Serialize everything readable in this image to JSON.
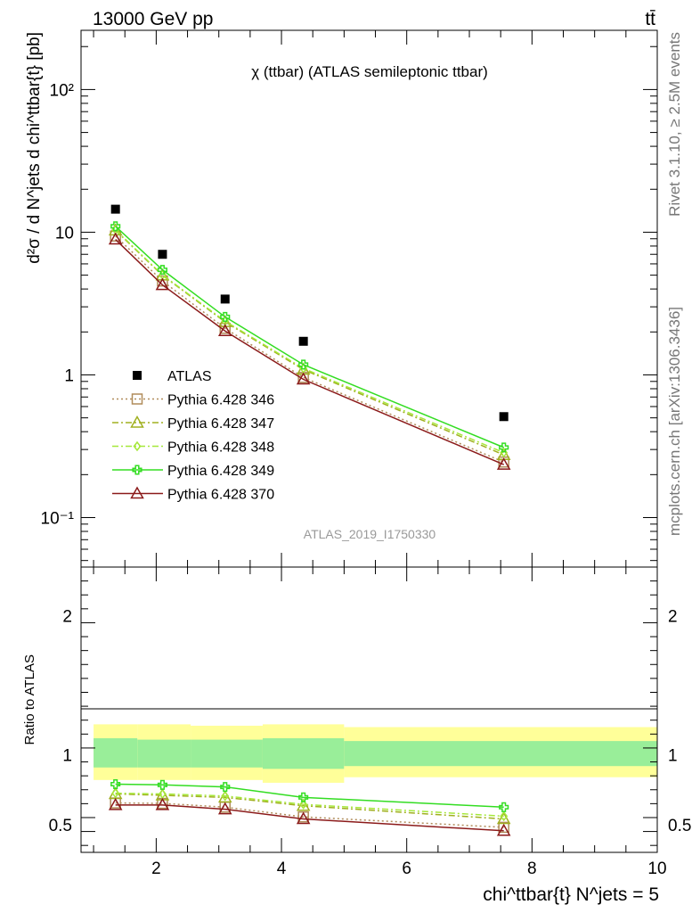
{
  "header": {
    "energy_label": "13000 GeV pp",
    "process_label": "tt̄"
  },
  "side_labels": {
    "rivet": "Rivet 3.1.10, ≥ 2.5M events",
    "mcplots": "mcplots.cern.ch [arXiv:1306.3436]"
  },
  "chart_data": [
    {
      "type": "scatter",
      "panel": "main",
      "title": "χ (ttbar) (ATLAS semileptonic ttbar)",
      "analysis_id": "ATLAS_2019_I1750330",
      "ylabel": "d²σ / d N^jets d chi^ttbar{t} [pb]",
      "yscale": "log",
      "ylim": [
        0.045,
        260
      ],
      "xlim": [
        0.8,
        10.0
      ],
      "ytick_labels": [
        "10⁻¹",
        "1",
        "10",
        "10²"
      ],
      "legend_position": "lower-left",
      "x": [
        1.35,
        2.1,
        3.1,
        4.35,
        7.55
      ],
      "series": [
        {
          "name": "ATLAS",
          "color": "#000000",
          "marker": "filled-square",
          "line": "none",
          "values": [
            14.5,
            7.0,
            3.4,
            1.72,
            0.51
          ]
        },
        {
          "name": "Pythia 6.428 346",
          "color": "#b08c5a",
          "marker": "open-square",
          "line": "dotted",
          "values": [
            9.4,
            4.55,
            2.12,
            0.96,
            0.245
          ]
        },
        {
          "name": "Pythia 6.428 347",
          "color": "#a0b020",
          "marker": "open-triangle",
          "line": "dashdot",
          "values": [
            10.3,
            4.98,
            2.35,
            1.09,
            0.275
          ]
        },
        {
          "name": "Pythia 6.428 348",
          "color": "#a6e83a",
          "marker": "open-diamond",
          "line": "dashdot",
          "values": [
            10.4,
            5.02,
            2.38,
            1.11,
            0.285
          ]
        },
        {
          "name": "Pythia 6.428 349",
          "color": "#33dd22",
          "marker": "open-cross",
          "line": "solid",
          "values": [
            11.0,
            5.45,
            2.55,
            1.18,
            0.31
          ]
        },
        {
          "name": "Pythia 6.428 370",
          "color": "#8b1a1a",
          "marker": "open-triangle",
          "line": "solid",
          "values": [
            8.9,
            4.27,
            2.03,
            0.93,
            0.235
          ]
        }
      ]
    },
    {
      "type": "line",
      "panel": "ratio",
      "ylabel": "Ratio to ATLAS",
      "xlabel": "chi^ttbar{t} N^jets = 5",
      "ylim": [
        0.3,
        2.35
      ],
      "xlim": [
        0.8,
        10.0
      ],
      "xtick_labels": [
        "2",
        "4",
        "6",
        "8",
        "10"
      ],
      "ytick_labels": [
        "0.5",
        "1",
        "2"
      ],
      "bins": [
        [
          1.0,
          1.7
        ],
        [
          1.7,
          2.55
        ],
        [
          2.55,
          3.7
        ],
        [
          3.7,
          5.0
        ],
        [
          5.0,
          10.0
        ]
      ],
      "band_outer": [
        [
          0.82,
          1.22
        ],
        [
          0.82,
          1.22
        ],
        [
          0.82,
          1.21
        ],
        [
          0.8,
          1.22
        ],
        [
          0.84,
          1.2
        ]
      ],
      "band_inner": [
        [
          0.91,
          1.12
        ],
        [
          0.91,
          1.11
        ],
        [
          0.91,
          1.11
        ],
        [
          0.9,
          1.12
        ],
        [
          0.92,
          1.1
        ]
      ],
      "x": [
        1.35,
        2.1,
        3.1,
        4.35,
        7.55
      ],
      "series": [
        {
          "name": "Pythia 6.428 346",
          "color": "#b08c5a",
          "marker": "open-square",
          "line": "dotted",
          "values": [
            0.655,
            0.652,
            0.625,
            0.555,
            0.48
          ]
        },
        {
          "name": "Pythia 6.428 347",
          "color": "#a0b020",
          "marker": "open-triangle",
          "line": "dashdot",
          "values": [
            0.72,
            0.71,
            0.695,
            0.635,
            0.54
          ]
        },
        {
          "name": "Pythia 6.428 348",
          "color": "#a6e83a",
          "marker": "open-diamond",
          "line": "dashdot",
          "values": [
            0.725,
            0.72,
            0.705,
            0.645,
            0.56
          ]
        },
        {
          "name": "Pythia 6.428 349",
          "color": "#33dd22",
          "marker": "open-cross",
          "line": "solid",
          "values": [
            0.79,
            0.785,
            0.77,
            0.695,
            0.625
          ]
        },
        {
          "name": "Pythia 6.428 370",
          "color": "#8b1a1a",
          "marker": "open-triangle",
          "line": "solid",
          "values": [
            0.64,
            0.64,
            0.61,
            0.54,
            0.455
          ]
        }
      ]
    }
  ]
}
